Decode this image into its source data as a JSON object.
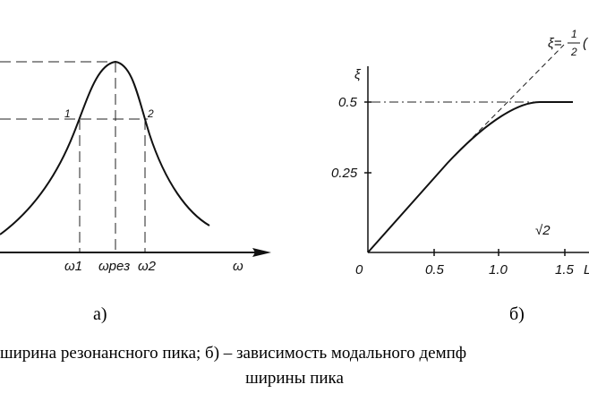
{
  "left": {
    "point1": "1",
    "point2": "2",
    "ticks": {
      "w1": "ω1",
      "wres": "ωрез",
      "w2": "ω2"
    },
    "x_axis": "ω",
    "sublabel": "а)"
  },
  "right": {
    "y_axis": "ξ",
    "ticks_y": [
      "0.5",
      "0.25"
    ],
    "origin": "0",
    "ticks_x": [
      "0.5",
      "1.0",
      "1.5"
    ],
    "sqrt2": "√2",
    "formula_lhs": "ξ=",
    "formula_num": "1",
    "formula_den": "2",
    "formula_tail": "(",
    "x_axis_partial": "L",
    "sublabel": "б)"
  },
  "caption": {
    "line1": "ширина резонансного пика; б) – зависимость модального демпф",
    "line2": "ширины пика"
  }
}
